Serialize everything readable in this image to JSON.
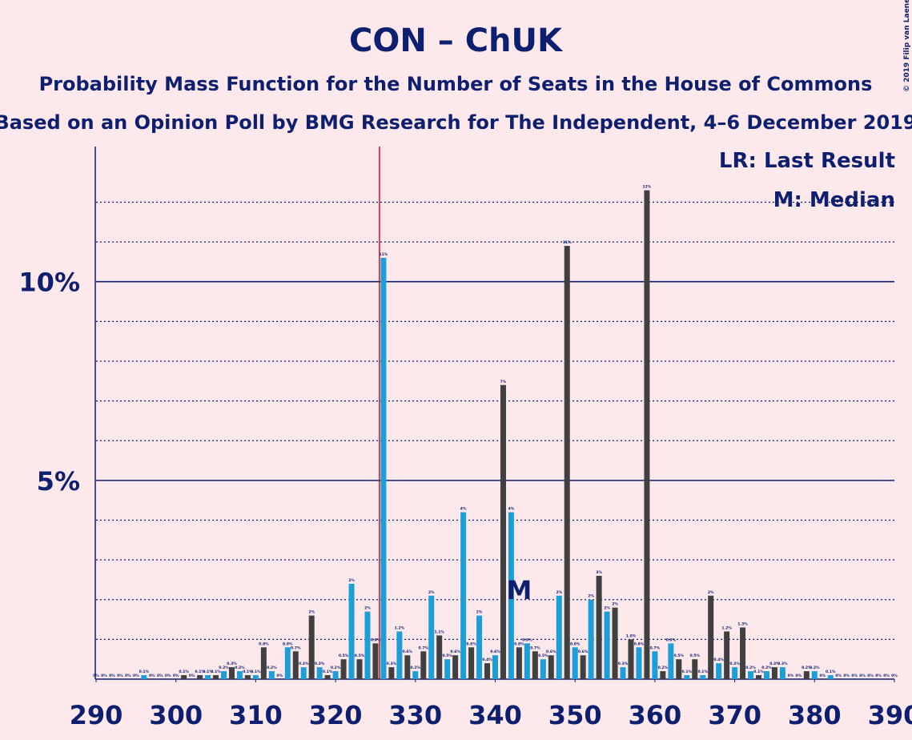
{
  "chart_data": {
    "type": "bar",
    "title": "CON – ChUK",
    "subtitle": "Probability Mass Function for the Number of Seats in the House of Commons",
    "subtitle2": "Based on an Opinion Poll by BMG Research for The Independent, 4–6 December 2019",
    "copyright": "© 2019 Filip van Laenen",
    "legend_lr": "LR: Last Result",
    "legend_m": "M: Median",
    "median": 343,
    "median_label": "M",
    "last_result": 326,
    "colors": [
      "#1c9fd9",
      "#404040"
    ],
    "x": [
      290,
      291,
      292,
      293,
      294,
      295,
      296,
      297,
      298,
      299,
      300,
      301,
      302,
      303,
      304,
      305,
      306,
      307,
      308,
      309,
      310,
      311,
      312,
      313,
      314,
      315,
      316,
      317,
      318,
      319,
      320,
      321,
      322,
      323,
      324,
      325,
      326,
      327,
      328,
      329,
      330,
      331,
      332,
      333,
      334,
      335,
      336,
      337,
      338,
      339,
      340,
      341,
      342,
      343,
      344,
      345,
      346,
      347,
      348,
      349,
      350,
      351,
      352,
      353,
      354,
      355,
      356,
      357,
      358,
      359,
      360,
      361,
      362,
      363,
      364,
      365,
      366,
      367,
      368,
      369,
      370,
      371,
      372,
      373,
      374,
      375,
      376,
      377,
      378,
      379,
      380,
      381,
      382,
      383,
      384,
      385,
      386,
      387,
      388,
      389,
      390
    ],
    "values": [
      0,
      0,
      0,
      0,
      0,
      0,
      0.1,
      0,
      0,
      0,
      0,
      0.1,
      0,
      0.1,
      0.1,
      0.1,
      0.2,
      0.3,
      0.2,
      0.1,
      0.1,
      0.8,
      0.2,
      0,
      0.8,
      0.7,
      0.3,
      1.6,
      0.3,
      0.1,
      0.2,
      0.5,
      2.4,
      0.5,
      1.7,
      0.9,
      10.6,
      0.3,
      1.2,
      0.6,
      0.2,
      0.7,
      2.1,
      1.1,
      0.5,
      0.6,
      4.2,
      0.8,
      1.6,
      0.4,
      0.6,
      7.4,
      4.2,
      0.8,
      0.9,
      0.7,
      0.5,
      0.6,
      2.1,
      10.9,
      0.8,
      0.6,
      2.0,
      2.6,
      1.7,
      1.8,
      0.3,
      1.0,
      0.8,
      12.3,
      0.7,
      0.2,
      0.9,
      0.5,
      0.1,
      0.5,
      0.1,
      2.1,
      0.4,
      1.2,
      0.3,
      1.3,
      0.2,
      0.1,
      0.2,
      0.3,
      0.3,
      0,
      0,
      0.2,
      0.2,
      0,
      0.1,
      0,
      0,
      0,
      0,
      0,
      0,
      0,
      0
    ],
    "value_labels": [
      "0%",
      "0%",
      "0%",
      "0%",
      "0%",
      "0%",
      "0.1%",
      "0%",
      "0%",
      "0%",
      "0%",
      "0.1%",
      "0%",
      "0.1%",
      "0.1%",
      "0.1%",
      "0.2%",
      "0.3%",
      "0.2%",
      "0.1%",
      "0.1%",
      "0.8%",
      "0.2%",
      "0%",
      "0.8%",
      "0.7%",
      "0.3%",
      "2%",
      "0.3%",
      "0.1%",
      "0.2%",
      "0.5%",
      "2%",
      "0.5%",
      "2%",
      "0.9%",
      "11%",
      "0.3%",
      "1.2%",
      "0.6%",
      "0.2%",
      "0.7%",
      "2%",
      "1.1%",
      "0.5%",
      "0.6%",
      "4%",
      "0.8%",
      "2%",
      "0.4%",
      "0.6%",
      "7%",
      "4%",
      "0.8%",
      "0.9%",
      "0.7%",
      "0.5%",
      "0.6%",
      "2%",
      "11%",
      "0.8%",
      "0.6%",
      "2%",
      "3%",
      "2%",
      "2%",
      "0.3%",
      "1.0%",
      "0.8%",
      "12%",
      "0.7%",
      "0.2%",
      "0.9%",
      "0.5%",
      "0.1%",
      "0.5%",
      "0.1%",
      "2%",
      "0.4%",
      "1.2%",
      "0.3%",
      "1.3%",
      "0.2%",
      "0.1%",
      "0.2%",
      "0.3%",
      "0.3%",
      "0%",
      "0%",
      "0.2%",
      "0.2%",
      "0%",
      "0.1%",
      "0%",
      "0%",
      "0%",
      "0%",
      "0%",
      "0%",
      "0%",
      "0%"
    ],
    "xlim": [
      290,
      390
    ],
    "xticks": [
      290,
      300,
      310,
      320,
      330,
      340,
      350,
      360,
      370,
      380,
      390
    ],
    "ylim": [
      0,
      13.4
    ],
    "yticks": [
      {
        "value": 5,
        "label": "5%"
      },
      {
        "value": 10,
        "label": "10%"
      }
    ],
    "minor_grid": [
      1,
      2,
      3,
      4,
      6,
      7,
      8,
      9,
      11,
      12
    ]
  }
}
